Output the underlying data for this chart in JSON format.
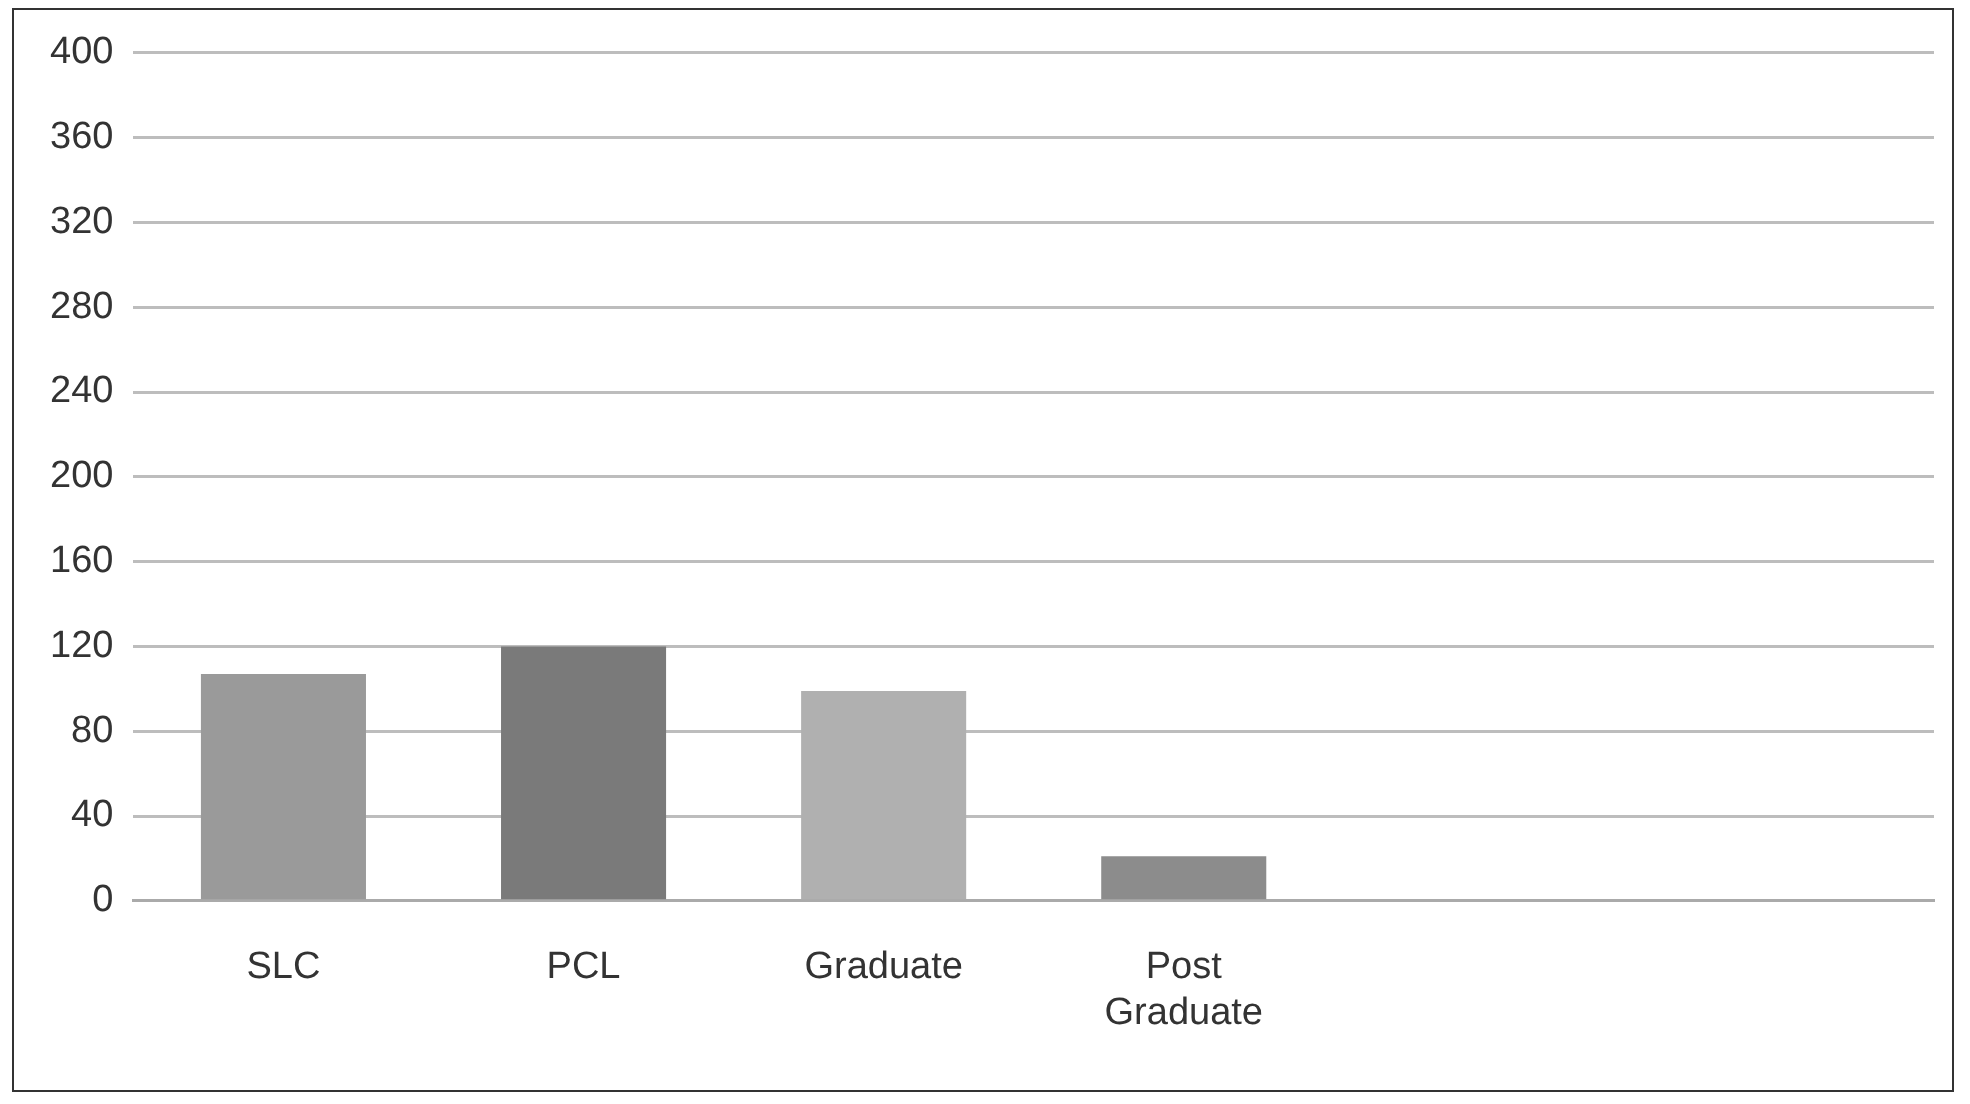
{
  "chart_data": {
    "type": "bar",
    "categories": [
      "SLC",
      "PCL",
      "Graduate",
      "Post Graduate",
      null,
      null
    ],
    "values": [
      107,
      120,
      99,
      21,
      null,
      null
    ],
    "colors": [
      "#9a9a9a",
      "#7a7a7a",
      "#b0b0b0",
      "#8c8c8c",
      "#8c8c8c",
      "#8c8c8c"
    ],
    "ylim": [
      0,
      400
    ],
    "yticks": [
      0,
      40,
      80,
      120,
      160,
      200,
      240,
      280,
      320,
      360,
      400
    ],
    "grid": "y",
    "legend": false
  }
}
